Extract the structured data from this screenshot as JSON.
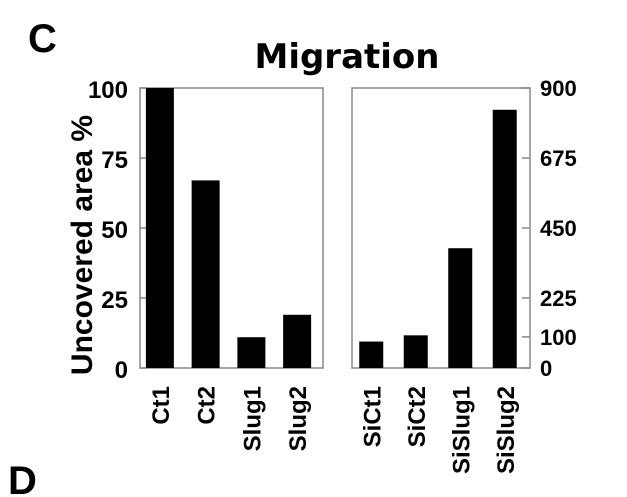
{
  "panel_letters": {
    "top": "C",
    "bottom": "D"
  },
  "chart_data": {
    "type": "bar",
    "title": "Migration",
    "ylabel": "Uncovered area %",
    "bar_color": "#000000",
    "panels": [
      {
        "categories": [
          "Ct1",
          "Ct2",
          "Slug1",
          "Slug2"
        ],
        "values": [
          100,
          67,
          11,
          19
        ],
        "ylim": [
          0,
          100
        ],
        "yticks": [
          0,
          25,
          50,
          75,
          100
        ],
        "axis": "left"
      },
      {
        "categories": [
          "SiCt1",
          "SiCt2",
          "SiSlug1",
          "SiSlug2"
        ],
        "values": [
          85,
          105,
          385,
          830
        ],
        "ylim": [
          0,
          900
        ],
        "yticks": [
          0,
          100,
          225,
          450,
          675,
          900
        ],
        "axis": "right"
      }
    ]
  }
}
